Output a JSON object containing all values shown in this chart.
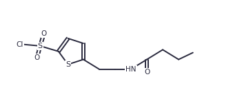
{
  "bg_color": "#ffffff",
  "line_color": "#2a2a3e",
  "line_width": 1.4,
  "font_size": 7.5,
  "figsize": [
    3.38,
    1.47
  ],
  "dpi": 100,
  "xlim": [
    -0.8,
    6.8
  ],
  "ylim": [
    -0.3,
    1.6
  ]
}
